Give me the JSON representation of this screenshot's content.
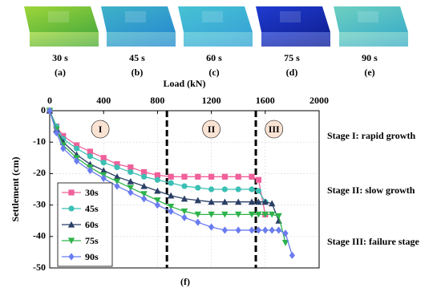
{
  "panels": [
    {
      "time": "30 s",
      "label": "(a)"
    },
    {
      "time": "45 s",
      "label": "(b)"
    },
    {
      "time": "60 s",
      "label": "(c)"
    },
    {
      "time": "75 s",
      "label": "(d)"
    },
    {
      "time": "90 s",
      "label": "(e)"
    }
  ],
  "chart_data": {
    "type": "line",
    "panel_label": "(f)",
    "x_label": "Load (kN)",
    "y_label": "Settlement (cm)",
    "xlim": [
      0,
      2000
    ],
    "xticks": [
      0,
      400,
      800,
      1200,
      1600,
      2000
    ],
    "ylim": [
      -50,
      0
    ],
    "yticks": [
      0,
      -10,
      -20,
      -30,
      -40,
      -50
    ],
    "grid": true,
    "legend": "lower left",
    "stage_boundaries": [
      870,
      1530
    ],
    "stage_labels": [
      "I",
      "II",
      "III"
    ],
    "stage_descriptions": [
      "Stage I: rapid growth",
      "Stage II: slow growth",
      "Stage III: failure stage"
    ],
    "x": [
      0,
      50,
      100,
      200,
      300,
      400,
      500,
      600,
      700,
      800,
      900,
      1000,
      1100,
      1200,
      1300,
      1400,
      1500,
      1550,
      1600,
      1650,
      1700,
      1750,
      1800
    ],
    "series": [
      {
        "name": "30s",
        "color": "#f0609a",
        "marker": "square",
        "values": [
          0,
          -5,
          -8,
          -11,
          -13,
          -15,
          -17,
          -18,
          -19.5,
          -20.5,
          -21,
          -21,
          -21,
          -21,
          -21,
          -21,
          -21,
          -22,
          -33,
          null,
          null,
          null,
          null
        ]
      },
      {
        "name": "45s",
        "color": "#3cbfb4",
        "marker": "circle",
        "values": [
          0,
          -5,
          -9,
          -12,
          -14.5,
          -16.5,
          -18,
          -19.5,
          -21,
          -22,
          -23,
          -24,
          -24.5,
          -25,
          -25,
          -25,
          -25,
          -25.5,
          -29,
          null,
          null,
          null,
          null
        ]
      },
      {
        "name": "60s",
        "color": "#2b3f66",
        "marker": "triangle-up",
        "values": [
          0,
          -6,
          -10,
          -14,
          -17,
          -19,
          -21,
          -22.5,
          -24,
          -25.5,
          -27,
          -28,
          -28.5,
          -29,
          -29,
          -29,
          -29,
          -29,
          -29,
          -29.5,
          -35,
          null,
          null
        ]
      },
      {
        "name": "75s",
        "color": "#2db34a",
        "marker": "triangle-down",
        "values": [
          0,
          -6,
          -11,
          -15,
          -18,
          -20.5,
          -22.5,
          -24.5,
          -26.5,
          -28.5,
          -30.5,
          -32,
          -33,
          -33,
          -33,
          -33,
          -33,
          -33,
          -33,
          -33,
          -33.5,
          -42,
          null
        ]
      },
      {
        "name": "90s",
        "color": "#6a7cf0",
        "marker": "diamond",
        "values": [
          0,
          -7,
          -12,
          -16,
          -19,
          -21.5,
          -24,
          -26,
          -28,
          -30,
          -32,
          -34,
          -35.5,
          -37,
          -38,
          -38,
          -38,
          -38,
          -38,
          -38,
          -38,
          -39,
          -46
        ]
      }
    ]
  }
}
